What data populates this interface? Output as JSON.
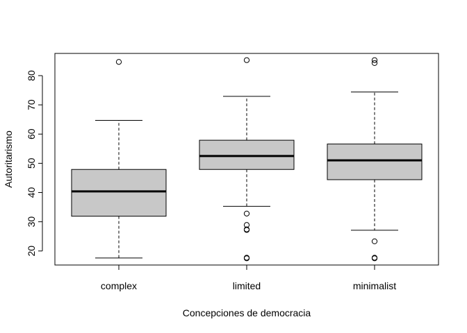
{
  "chart_data": {
    "type": "boxplot",
    "title": "",
    "xlabel": "Concepciones de democracia",
    "ylabel": "Autoritarismo",
    "ylim": [
      15.2,
      87.6
    ],
    "yticks": [
      20,
      30,
      40,
      50,
      60,
      70,
      80
    ],
    "grid": false,
    "categories": [
      "complex",
      "limited",
      "minimalist"
    ],
    "boxes": [
      {
        "category": "complex",
        "whisker_low": 17.6,
        "q1": 31.9,
        "median": 40.4,
        "q3": 47.9,
        "whisker_high": 64.7,
        "outliers": [
          84.7
        ]
      },
      {
        "category": "limited",
        "whisker_low": 35.3,
        "q1": 47.9,
        "median": 52.5,
        "q3": 57.9,
        "whisker_high": 72.9,
        "outliers": [
          85.3,
          32.8,
          28.9,
          27.4,
          27.2,
          17.7,
          17.5
        ]
      },
      {
        "category": "minimalist",
        "whisker_low": 27.1,
        "q1": 44.4,
        "median": 51.0,
        "q3": 56.6,
        "whisker_high": 74.4,
        "outliers": [
          85.3,
          84.3,
          23.3,
          17.7,
          17.5
        ]
      }
    ],
    "colors": {
      "box_fill": "#c8c8c8",
      "stroke": "#000000"
    }
  }
}
